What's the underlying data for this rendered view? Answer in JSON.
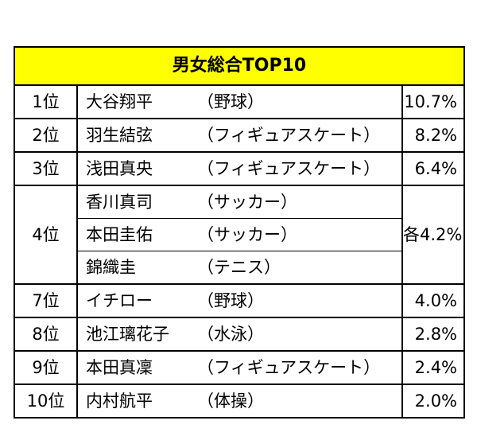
{
  "title": "男女総合TOP10",
  "rows": [
    {
      "rank": "1位",
      "name": "大谷翔平",
      "sport": "（野球）",
      "pct": "10.7%"
    },
    {
      "rank": "2位",
      "name": "羽生結弦",
      "sport": "（フィギュアスケート）",
      "pct": "8.2%"
    },
    {
      "rank": "3位",
      "name": "浅田真央",
      "sport": "（フィギュアスケート）",
      "pct": "6.4%"
    }
  ],
  "group": {
    "rank": "4位",
    "pct": "各4.2%",
    "members": [
      {
        "name": "香川真司",
        "sport": "（サッカー）"
      },
      {
        "name": "本田圭佑",
        "sport": "（サッカー）"
      },
      {
        "name": "錦織圭",
        "sport": "（テニス）"
      }
    ]
  },
  "rows_after": [
    {
      "rank": "7位",
      "name": "イチロー",
      "sport": "（野球）",
      "pct": "4.0%"
    },
    {
      "rank": "8位",
      "name": "池江璃花子",
      "sport": "（水泳）",
      "pct": "2.8%"
    },
    {
      "rank": "9位",
      "name": "本田真凜",
      "sport": "（フィギュアスケート）",
      "pct": "2.4%"
    },
    {
      "rank": "10位",
      "name": "内村航平",
      "sport": "（体操）",
      "pct": "2.0%"
    }
  ],
  "colors": {
    "header_bg": "#ffff00",
    "border": "#000000"
  }
}
